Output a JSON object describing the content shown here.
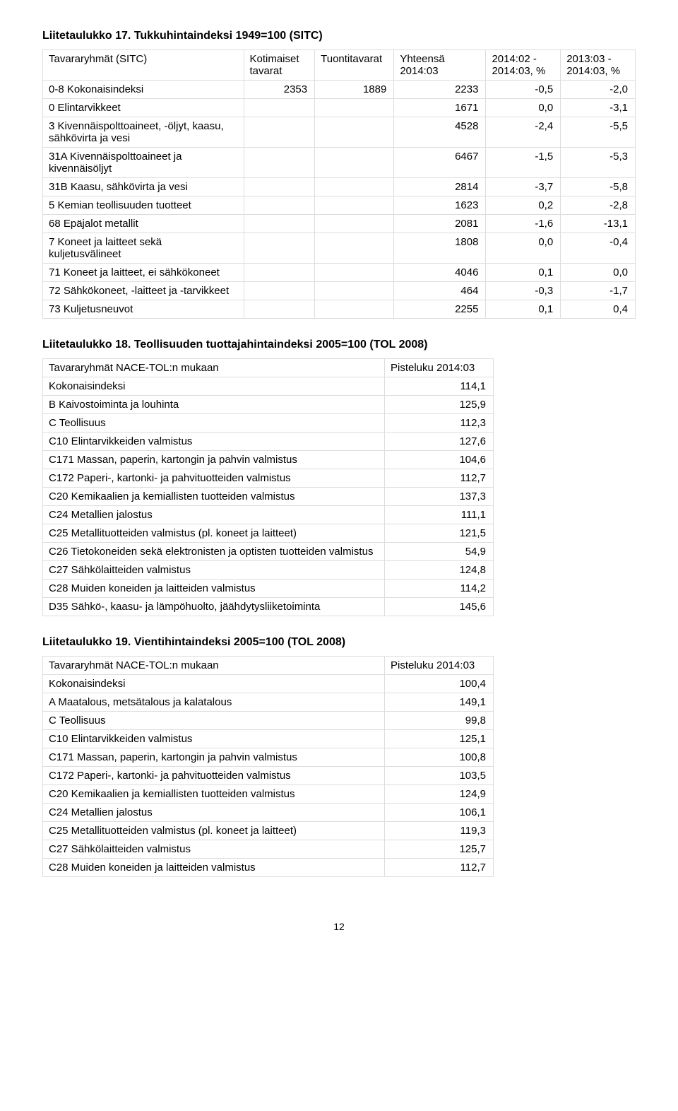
{
  "page_number": "12",
  "table17": {
    "title": "Liitetaulukko 17. Tukkuhintaindeksi 1949=100 (SITC)",
    "head": {
      "c1": "Tavararyhmät (SITC)",
      "c2": "Kotimaiset tavarat",
      "c3": "Tuontitavarat",
      "c4": "Yhteensä 2014:03",
      "c5": "2014:02 - 2014:03, %",
      "c6": "2013:03 - 2014:03, %"
    },
    "rows": [
      {
        "label": "0-8 Kokonaisindeksi",
        "v2": "2353",
        "v3": "1889",
        "v4": "2233",
        "v5": "-0,5",
        "v6": "-2,0"
      },
      {
        "label": "0 Elintarvikkeet",
        "v2": "",
        "v3": "",
        "v4": "1671",
        "v5": "0,0",
        "v6": "-3,1"
      },
      {
        "label": "3 Kivennäispolttoaineet, -öljyt, kaasu, sähkövirta ja vesi",
        "v2": "",
        "v3": "",
        "v4": "4528",
        "v5": "-2,4",
        "v6": "-5,5"
      },
      {
        "label": "31A Kivennäispolttoaineet ja kivennäisöljyt",
        "v2": "",
        "v3": "",
        "v4": "6467",
        "v5": "-1,5",
        "v6": "-5,3"
      },
      {
        "label": "31B Kaasu, sähkövirta ja vesi",
        "v2": "",
        "v3": "",
        "v4": "2814",
        "v5": "-3,7",
        "v6": "-5,8"
      },
      {
        "label": "5 Kemian teollisuuden tuotteet",
        "v2": "",
        "v3": "",
        "v4": "1623",
        "v5": "0,2",
        "v6": "-2,8"
      },
      {
        "label": "68 Epäjalot metallit",
        "v2": "",
        "v3": "",
        "v4": "2081",
        "v5": "-1,6",
        "v6": "-13,1"
      },
      {
        "label": "7 Koneet ja laitteet sekä kuljetusvälineet",
        "v2": "",
        "v3": "",
        "v4": "1808",
        "v5": "0,0",
        "v6": "-0,4"
      },
      {
        "label": "71 Koneet ja laitteet, ei sähkökoneet",
        "v2": "",
        "v3": "",
        "v4": "4046",
        "v5": "0,1",
        "v6": "0,0"
      },
      {
        "label": "72 Sähkökoneet, -laitteet ja -tarvikkeet",
        "v2": "",
        "v3": "",
        "v4": "464",
        "v5": "-0,3",
        "v6": "-1,7"
      },
      {
        "label": "73 Kuljetusneuvot",
        "v2": "",
        "v3": "",
        "v4": "2255",
        "v5": "0,1",
        "v6": "0,4"
      }
    ]
  },
  "table18": {
    "title": "Liitetaulukko 18. Teollisuuden tuottajahintaindeksi 2005=100 (TOL 2008)",
    "head": {
      "c1": "Tavararyhmät NACE-TOL:n mukaan",
      "c2": "Pisteluku 2014:03"
    },
    "rows": [
      {
        "label": "Kokonaisindeksi",
        "v": "114,1"
      },
      {
        "label": "B Kaivostoiminta ja louhinta",
        "v": "125,9"
      },
      {
        "label": "C Teollisuus",
        "v": "112,3"
      },
      {
        "label": "C10 Elintarvikkeiden valmistus",
        "v": "127,6"
      },
      {
        "label": "C171 Massan, paperin, kartongin ja pahvin valmistus",
        "v": "104,6"
      },
      {
        "label": "C172 Paperi-, kartonki- ja pahvituotteiden valmistus",
        "v": "112,7"
      },
      {
        "label": "C20 Kemikaalien ja kemiallisten tuotteiden valmistus",
        "v": "137,3"
      },
      {
        "label": "C24 Metallien jalostus",
        "v": "111,1"
      },
      {
        "label": "C25 Metallituotteiden valmistus (pl. koneet ja laitteet)",
        "v": "121,5"
      },
      {
        "label": "C26 Tietokoneiden sekä elektronisten ja optisten tuotteiden valmistus",
        "v": "54,9"
      },
      {
        "label": "C27 Sähkölaitteiden valmistus",
        "v": "124,8"
      },
      {
        "label": "C28 Muiden koneiden ja laitteiden valmistus",
        "v": "114,2"
      },
      {
        "label": "D35 Sähkö-, kaasu- ja lämpöhuolto, jäähdytysliiketoiminta",
        "v": "145,6"
      }
    ]
  },
  "table19": {
    "title": "Liitetaulukko 19. Vientihintaindeksi 2005=100 (TOL 2008)",
    "head": {
      "c1": "Tavararyhmät NACE-TOL:n mukaan",
      "c2": "Pisteluku 2014:03"
    },
    "rows": [
      {
        "label": "Kokonaisindeksi",
        "v": "100,4"
      },
      {
        "label": "A Maatalous, metsätalous ja kalatalous",
        "v": "149,1"
      },
      {
        "label": "C Teollisuus",
        "v": "99,8"
      },
      {
        "label": "C10 Elintarvikkeiden valmistus",
        "v": "125,1"
      },
      {
        "label": "C171 Massan, paperin, kartongin ja pahvin valmistus",
        "v": "100,8"
      },
      {
        "label": "C172 Paperi-, kartonki- ja pahvituotteiden valmistus",
        "v": "103,5"
      },
      {
        "label": "C20 Kemikaalien ja kemiallisten tuotteiden valmistus",
        "v": "124,9"
      },
      {
        "label": "C24 Metallien jalostus",
        "v": "106,1"
      },
      {
        "label": "C25 Metallituotteiden valmistus (pl. koneet ja laitteet)",
        "v": "119,3"
      },
      {
        "label": "C27 Sähkölaitteiden valmistus",
        "v": "125,7"
      },
      {
        "label": "C28 Muiden koneiden ja laitteiden valmistus",
        "v": "112,7"
      }
    ]
  }
}
